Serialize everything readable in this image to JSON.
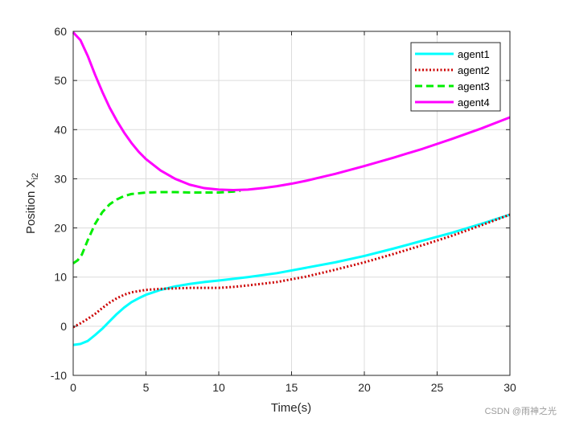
{
  "chart_data": {
    "type": "line",
    "title": "",
    "xlabel": "Time(s)",
    "ylabel_main": "Position X",
    "ylabel_sub": "i2",
    "xlim": [
      0,
      30
    ],
    "ylim": [
      -10,
      60
    ],
    "xticks": [
      0,
      5,
      10,
      15,
      20,
      25,
      30
    ],
    "yticks": [
      -10,
      0,
      10,
      20,
      30,
      40,
      50,
      60
    ],
    "grid": true,
    "legend_position": "top-right",
    "series": [
      {
        "name": "agent1",
        "color": "#00ffff",
        "style": "solid",
        "x": [
          0,
          0.5,
          1,
          1.5,
          2,
          2.5,
          3,
          3.5,
          4,
          4.5,
          5,
          5.5,
          6,
          7,
          8,
          9,
          10,
          12,
          14,
          16,
          18,
          20,
          22,
          24,
          26,
          28,
          30
        ],
        "y": [
          -3.8,
          -3.6,
          -3.0,
          -1.8,
          -0.5,
          1.0,
          2.5,
          3.8,
          4.9,
          5.7,
          6.4,
          6.9,
          7.4,
          8.1,
          8.6,
          9.0,
          9.3,
          10.0,
          10.8,
          11.9,
          13.0,
          14.3,
          15.8,
          17.4,
          19.0,
          20.8,
          22.7
        ]
      },
      {
        "name": "agent2",
        "color": "#cc0000",
        "style": "dotted",
        "x": [
          0,
          0.5,
          1,
          1.5,
          2,
          2.5,
          3,
          3.5,
          4,
          5,
          6,
          7,
          8,
          9,
          10,
          11,
          12,
          14,
          16,
          18,
          20,
          22,
          24,
          26,
          28,
          30
        ],
        "y": [
          -0.2,
          0.6,
          1.5,
          2.5,
          3.7,
          4.8,
          5.7,
          6.4,
          6.9,
          7.4,
          7.6,
          7.7,
          7.8,
          7.8,
          7.8,
          8.0,
          8.3,
          9.0,
          10.1,
          11.5,
          13.0,
          14.7,
          16.5,
          18.4,
          20.5,
          22.7
        ]
      },
      {
        "name": "agent3",
        "color": "#00ee00",
        "style": "dashed",
        "x": [
          0,
          0.3,
          0.6,
          1,
          1.5,
          2,
          2.5,
          3,
          3.5,
          4,
          5,
          6,
          7,
          8,
          9,
          10,
          11,
          11.5
        ],
        "y": [
          12.8,
          13.4,
          14.6,
          17.5,
          20.8,
          23.2,
          24.8,
          25.8,
          26.5,
          26.9,
          27.2,
          27.3,
          27.3,
          27.2,
          27.2,
          27.2,
          27.4,
          27.6
        ]
      },
      {
        "name": "agent4",
        "color": "#ff00ff",
        "style": "solid",
        "x": [
          0,
          0.5,
          1,
          1.5,
          2,
          2.5,
          3,
          3.5,
          4,
          4.5,
          5,
          6,
          7,
          8,
          9,
          10,
          11,
          12,
          13,
          14,
          15,
          16,
          17,
          18,
          20,
          22,
          24,
          26,
          28,
          30
        ],
        "y": [
          59.8,
          58.2,
          55.0,
          51.2,
          47.7,
          44.5,
          41.8,
          39.4,
          37.3,
          35.5,
          34.0,
          31.7,
          30.0,
          28.8,
          28.1,
          27.8,
          27.7,
          27.8,
          28.1,
          28.5,
          29.0,
          29.6,
          30.3,
          31.0,
          32.6,
          34.3,
          36.1,
          38.1,
          40.2,
          42.5
        ]
      }
    ]
  },
  "watermark": "CSDN @雨神之光"
}
